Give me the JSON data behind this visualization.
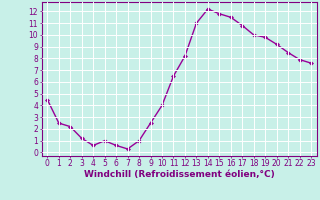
{
  "x": [
    0,
    1,
    2,
    3,
    4,
    5,
    6,
    7,
    8,
    9,
    10,
    11,
    12,
    13,
    14,
    15,
    16,
    17,
    18,
    19,
    20,
    21,
    22,
    23
  ],
  "y": [
    4.5,
    2.5,
    2.2,
    1.2,
    0.6,
    1.0,
    0.6,
    0.3,
    1.0,
    2.5,
    4.0,
    6.5,
    8.2,
    11.0,
    12.2,
    11.8,
    11.5,
    10.8,
    10.0,
    9.8,
    9.2,
    8.5,
    7.9,
    7.6
  ],
  "line_color": "#990099",
  "marker": "D",
  "markersize": 2.0,
  "linewidth": 1.0,
  "xlabel": "Windchill (Refroidissement éolien,°C)",
  "xlabel_fontsize": 6.5,
  "xlim": [
    -0.5,
    23.5
  ],
  "ylim": [
    -0.3,
    12.8
  ],
  "yticks": [
    0,
    1,
    2,
    3,
    4,
    5,
    6,
    7,
    8,
    9,
    10,
    11,
    12
  ],
  "xticks": [
    0,
    1,
    2,
    3,
    4,
    5,
    6,
    7,
    8,
    9,
    10,
    11,
    12,
    13,
    14,
    15,
    16,
    17,
    18,
    19,
    20,
    21,
    22,
    23
  ],
  "background_color": "#c8f0e8",
  "grid_color": "#ffffff",
  "tick_fontsize": 5.5,
  "spine_color": "#800080",
  "xlabel_bold": true
}
